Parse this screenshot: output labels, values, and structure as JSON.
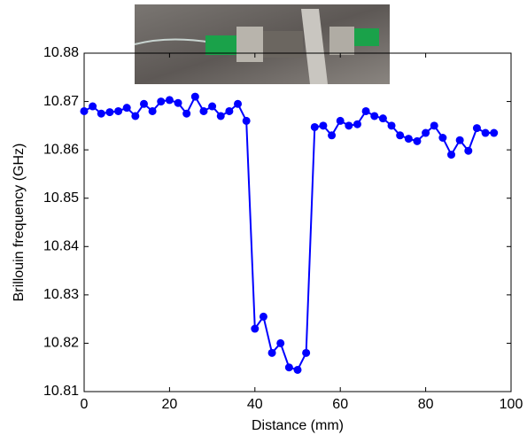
{
  "chart_data": {
    "type": "line",
    "xlabel": "Distance (mm)",
    "ylabel": "Brillouin frequency (GHz)",
    "x": [
      0,
      2,
      4,
      6,
      8,
      10,
      12,
      14,
      16,
      18,
      20,
      22,
      24,
      26,
      28,
      30,
      32,
      34,
      36,
      38,
      40,
      42,
      44,
      46,
      48,
      50,
      52,
      54,
      56,
      58,
      60,
      62,
      64,
      66,
      68,
      70,
      72,
      74,
      76,
      78,
      80,
      82,
      84,
      86,
      88,
      90,
      92,
      94,
      96
    ],
    "values": [
      10.868,
      10.869,
      10.8675,
      10.8678,
      10.868,
      10.8687,
      10.867,
      10.8695,
      10.868,
      10.87,
      10.8703,
      10.8697,
      10.8675,
      10.871,
      10.868,
      10.869,
      10.867,
      10.868,
      10.8695,
      10.866,
      10.823,
      10.8255,
      10.818,
      10.82,
      10.815,
      10.8145,
      10.818,
      10.8647,
      10.865,
      10.863,
      10.866,
      10.865,
      10.8653,
      10.868,
      10.867,
      10.8665,
      10.865,
      10.863,
      10.8623,
      10.8618,
      10.8635,
      10.865,
      10.8625,
      10.859,
      10.862,
      10.8598,
      10.8645,
      10.8635,
      10.8635
    ],
    "color": "#0000ff",
    "xlim": [
      0,
      100
    ],
    "xticks": [
      0,
      20,
      40,
      60,
      80,
      100
    ],
    "ylim": [
      10.81,
      10.88
    ],
    "yticks": [
      10.81,
      10.82,
      10.83,
      10.84,
      10.85,
      10.86,
      10.87,
      10.88
    ],
    "grid": false
  }
}
